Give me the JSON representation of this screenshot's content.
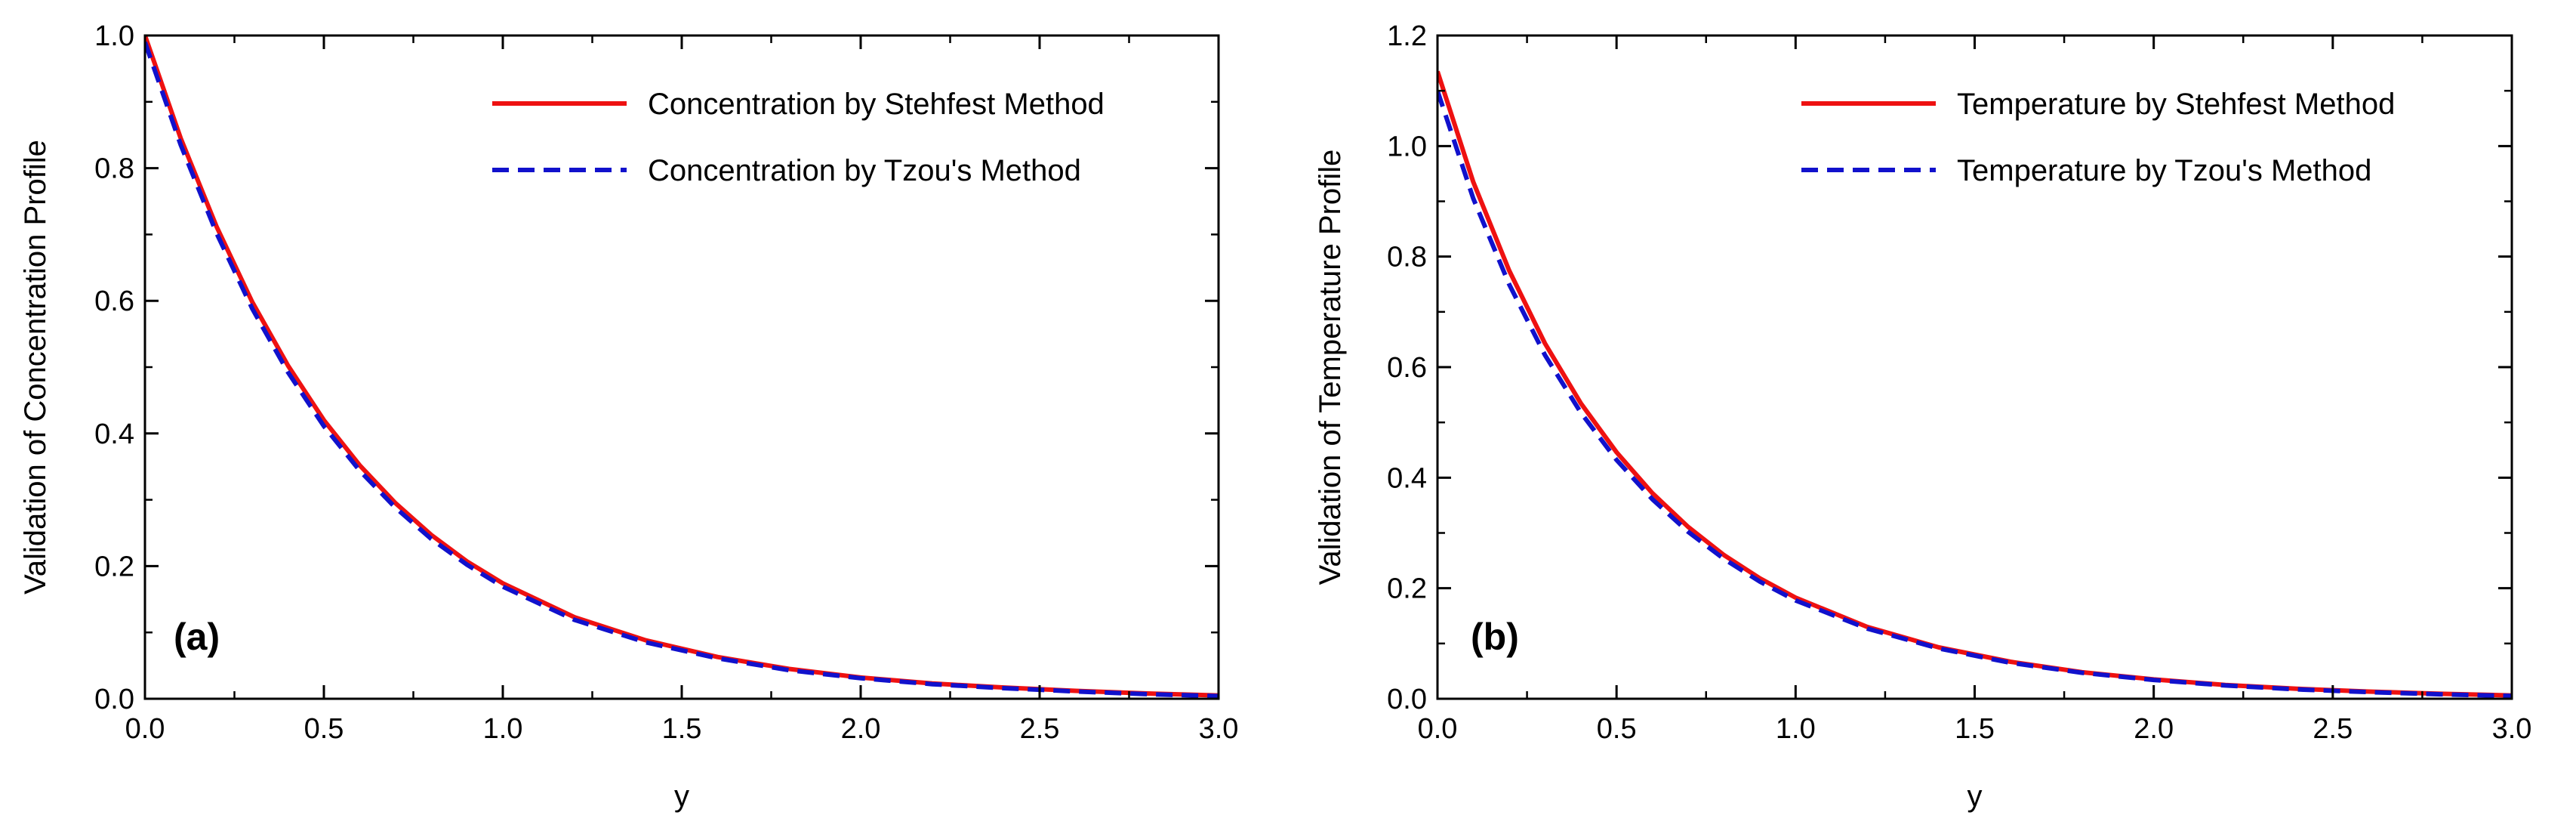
{
  "chart_data": [
    {
      "type": "line",
      "panel_label": "(a)",
      "xlabel": "y",
      "ylabel": "Validation of Concentration Profile",
      "xlim": [
        0,
        3
      ],
      "ylim": [
        0,
        1
      ],
      "xticks": [
        "0.0",
        "0.5",
        "1.0",
        "1.5",
        "2.0",
        "2.5",
        "3.0"
      ],
      "yticks": [
        "0.0",
        "0.2",
        "0.4",
        "0.6",
        "0.8",
        "1.0"
      ],
      "legend_position": "top-right",
      "x": [
        0,
        0.1,
        0.2,
        0.3,
        0.4,
        0.5,
        0.6,
        0.7,
        0.8,
        0.9,
        1.0,
        1.2,
        1.4,
        1.6,
        1.8,
        2.0,
        2.2,
        2.4,
        2.6,
        2.8,
        3.0
      ],
      "series": [
        {
          "name": "Concentration by Stehfest Method",
          "color": "#ee1111",
          "dash": "solid",
          "values": [
            1.0,
            0.845,
            0.712,
            0.598,
            0.502,
            0.42,
            0.352,
            0.295,
            0.247,
            0.207,
            0.174,
            0.123,
            0.088,
            0.063,
            0.045,
            0.032,
            0.023,
            0.017,
            0.012,
            0.008,
            0.005
          ]
        },
        {
          "name": "Concentration by Tzou's Method",
          "color": "#1111cc",
          "dash": "dashed",
          "values": [
            0.99,
            0.835,
            0.702,
            0.588,
            0.492,
            0.411,
            0.344,
            0.288,
            0.241,
            0.202,
            0.169,
            0.119,
            0.085,
            0.061,
            0.043,
            0.031,
            0.022,
            0.016,
            0.011,
            0.007,
            0.004
          ]
        }
      ]
    },
    {
      "type": "line",
      "panel_label": "(b)",
      "xlabel": "y",
      "ylabel": "Validation of Temperature Profile",
      "xlim": [
        0,
        3
      ],
      "ylim": [
        0,
        1.2
      ],
      "xticks": [
        "0.0",
        "0.5",
        "1.0",
        "1.5",
        "2.0",
        "2.5",
        "3.0"
      ],
      "yticks": [
        "0.0",
        "0.2",
        "0.4",
        "0.6",
        "0.8",
        "1.0",
        "1.2"
      ],
      "legend_position": "top-right",
      "x": [
        0,
        0.1,
        0.2,
        0.3,
        0.4,
        0.5,
        0.6,
        0.7,
        0.8,
        0.9,
        1.0,
        1.2,
        1.4,
        1.6,
        1.8,
        2.0,
        2.2,
        2.4,
        2.6,
        2.8,
        3.0
      ],
      "series": [
        {
          "name": "Temperature by Stehfest Method",
          "color": "#ee1111",
          "dash": "solid",
          "values": [
            1.135,
            0.935,
            0.775,
            0.643,
            0.535,
            0.446,
            0.372,
            0.311,
            0.26,
            0.218,
            0.183,
            0.13,
            0.093,
            0.067,
            0.048,
            0.035,
            0.025,
            0.018,
            0.013,
            0.009,
            0.006
          ]
        },
        {
          "name": "Temperature by Tzou's Method",
          "color": "#1111cc",
          "dash": "dashed",
          "values": [
            1.1,
            0.905,
            0.75,
            0.622,
            0.518,
            0.432,
            0.361,
            0.302,
            0.253,
            0.212,
            0.178,
            0.127,
            0.091,
            0.065,
            0.047,
            0.034,
            0.024,
            0.017,
            0.012,
            0.008,
            0.005
          ]
        }
      ]
    }
  ]
}
